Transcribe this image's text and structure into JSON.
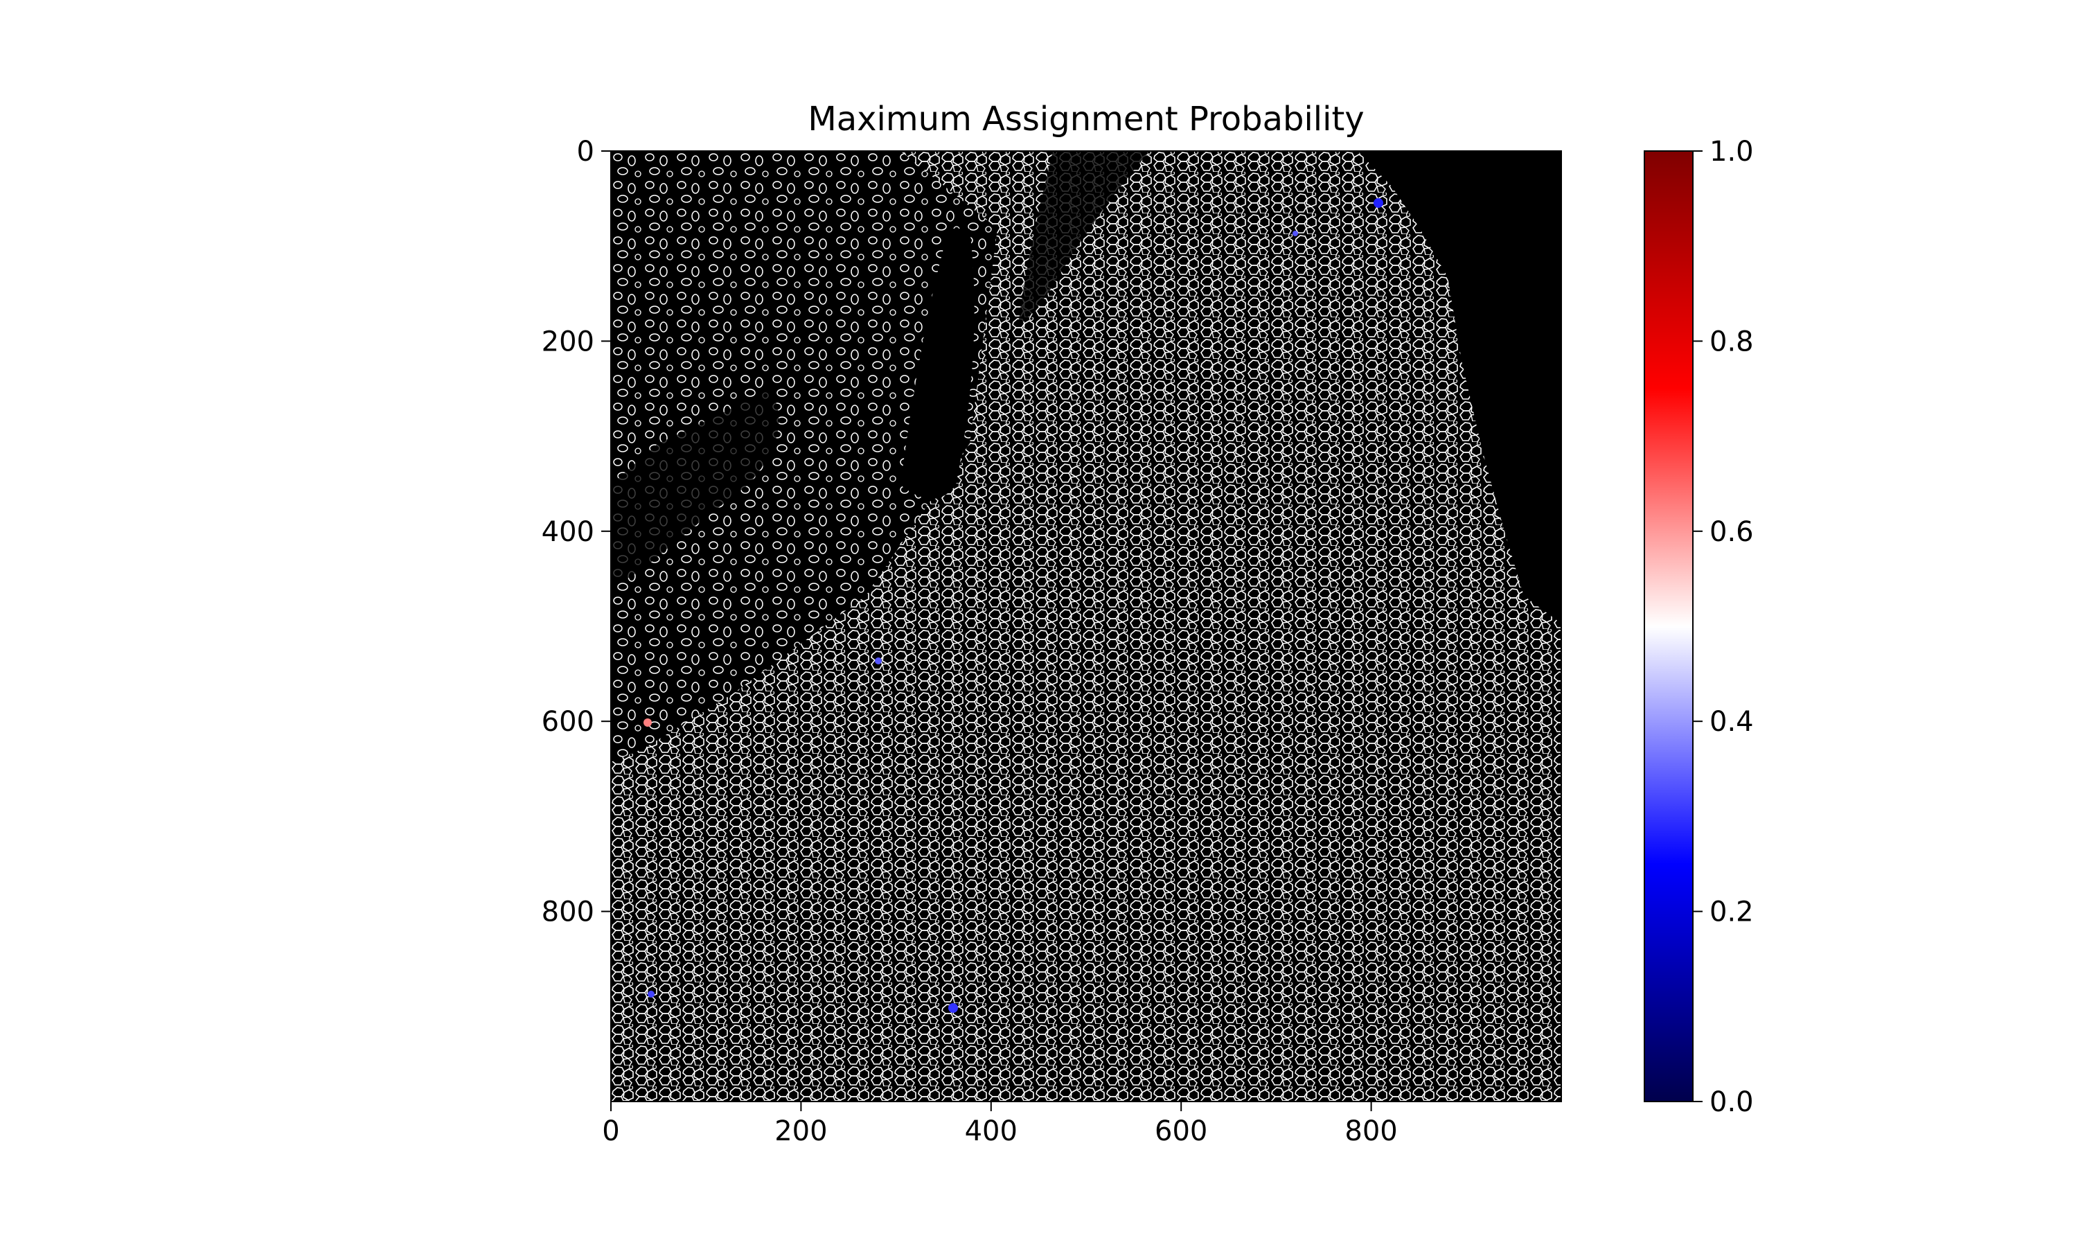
{
  "chart_data": {
    "type": "heatmap",
    "title": "Maximum Assignment Probability",
    "xlabel": "",
    "ylabel": "",
    "xlim": [
      0,
      1000
    ],
    "ylim": [
      1000,
      0
    ],
    "x_ticks": [
      "0",
      "200",
      "400",
      "600",
      "800"
    ],
    "y_ticks": [
      "0",
      "200",
      "400",
      "600",
      "800"
    ],
    "colorbar": {
      "min": 0.0,
      "max": 1.0,
      "ticks": [
        "0.0",
        "0.2",
        "0.4",
        "0.6",
        "0.8",
        "1.0"
      ],
      "colormap": "seismic",
      "colors": [
        "#00004c",
        "#0000ff",
        "#ffffff",
        "#ff0000",
        "#800000"
      ]
    },
    "image_description_colors": {
      "background": "#000000",
      "cell_boundaries": "#ffffff"
    }
  }
}
